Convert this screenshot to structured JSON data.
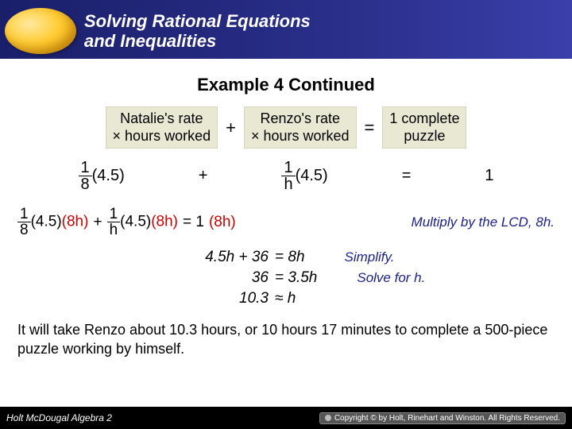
{
  "header": {
    "title_line1": "Solving Rational Equations",
    "title_line2": "and Inequalities"
  },
  "example_title": "Example 4 Continued",
  "wordrow": {
    "box1_l1": "Natalie's rate",
    "box1_l2": "× hours worked",
    "plus": "+",
    "box2_l1": "Renzo's rate",
    "box2_l2": "× hours worked",
    "eq": "=",
    "box3_l1": "1 complete",
    "box3_l2": "puzzle"
  },
  "symb": {
    "t1_num": "1",
    "t1_den": "8",
    "t1_rest": "(4.5)",
    "plus": "+",
    "t2_num": "1",
    "t2_den": "h",
    "t2_rest": "(4.5)",
    "eq": "=",
    "rhs": "1"
  },
  "lcd": {
    "a_num": "1",
    "a_den": "8",
    "a_rest": "(4.5)",
    "a_mult": "(8h)",
    "plus": "+",
    "b_num": "1",
    "b_den": "h",
    "b_rest": "(4.5)",
    "b_mult": "(8h)",
    "eq": "= 1",
    "r_mult": "(8h)",
    "comment": "Multiply by the LCD, 8h."
  },
  "steps": {
    "s1_l": "4.5h + 36",
    "s1_r": "= 8h",
    "s1_c": "Simplify.",
    "s2_l": "36",
    "s2_r": "= 3.5h",
    "s2_c": "Solve for h.",
    "s3_l": "10.3",
    "s3_r": "≈ h"
  },
  "conclusion": "It will take Renzo about 10.3 hours, or 10 hours 17 minutes to complete a 500-piece puzzle working by himself.",
  "footer": {
    "brand": "Holt McDougal Algebra 2",
    "copyright": "Copyright © by Holt, Rinehart and Winston. All Rights Reserved."
  },
  "colors": {
    "header_bg_left": "#1a1f6a",
    "header_bg_right": "#3a3faa",
    "orb_light": "#ffe9a0",
    "orb_mid": "#ffcc33",
    "orb_dark": "#e69900",
    "wordbox_bg": "#e9e9d3",
    "lcd_highlight": "#cc0000",
    "comment_color": "#1a1f8a",
    "footer_bg": "#000000"
  },
  "fonts": {
    "title_pt": 22,
    "body_pt": 18,
    "math_pt": 19,
    "comment_pt": 17,
    "footer_pt": 12
  }
}
